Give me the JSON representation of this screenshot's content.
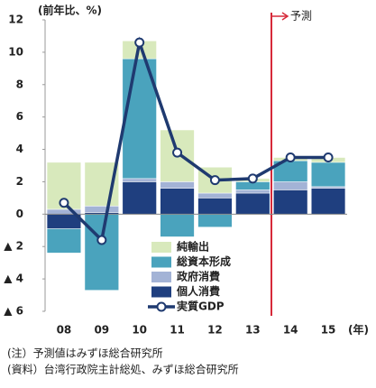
{
  "chart_data": {
    "type": "bar",
    "y_label": "(前年比、%)",
    "x_unit_label": "(年)",
    "forecast_label": "予測",
    "categories": [
      "08",
      "09",
      "10",
      "11",
      "12",
      "13",
      "14",
      "15"
    ],
    "series": [
      {
        "name": "個人消費",
        "type": "bar",
        "color": "#1f3f7f",
        "values": [
          -0.9,
          0.1,
          2.0,
          1.6,
          1.0,
          1.3,
          1.5,
          1.6
        ]
      },
      {
        "name": "政府消費",
        "type": "bar",
        "color": "#a3b3d6",
        "values": [
          0.3,
          0.4,
          0.2,
          0.4,
          0.3,
          0.2,
          0.5,
          0.1
        ]
      },
      {
        "name": "総資本形成",
        "type": "bar",
        "color": "#4aa3bd",
        "values": [
          -1.5,
          -4.7,
          7.4,
          -1.4,
          -0.8,
          0.5,
          1.3,
          1.5
        ]
      },
      {
        "name": "純輸出",
        "type": "bar",
        "color": "#d8e9bc",
        "values": [
          2.9,
          2.7,
          1.1,
          3.2,
          1.6,
          0.2,
          0.2,
          0.3
        ]
      },
      {
        "name": "実質GDP",
        "type": "line",
        "color": "#1f3a70",
        "values": [
          0.7,
          -1.6,
          10.6,
          3.8,
          2.1,
          2.2,
          3.5,
          3.5
        ]
      }
    ],
    "ylim": [
      -6,
      12
    ],
    "yticks": [
      {
        "value": -6,
        "label": "▲ 6"
      },
      {
        "value": -4,
        "label": "▲ 4"
      },
      {
        "value": -2,
        "label": "▲ 2"
      },
      0,
      2,
      4,
      6,
      8,
      10,
      12
    ],
    "notes": [
      "(注）予測値はみずほ総合研究所",
      "(資料）台湾行政院主計総処、みずほ総合研究所"
    ]
  }
}
